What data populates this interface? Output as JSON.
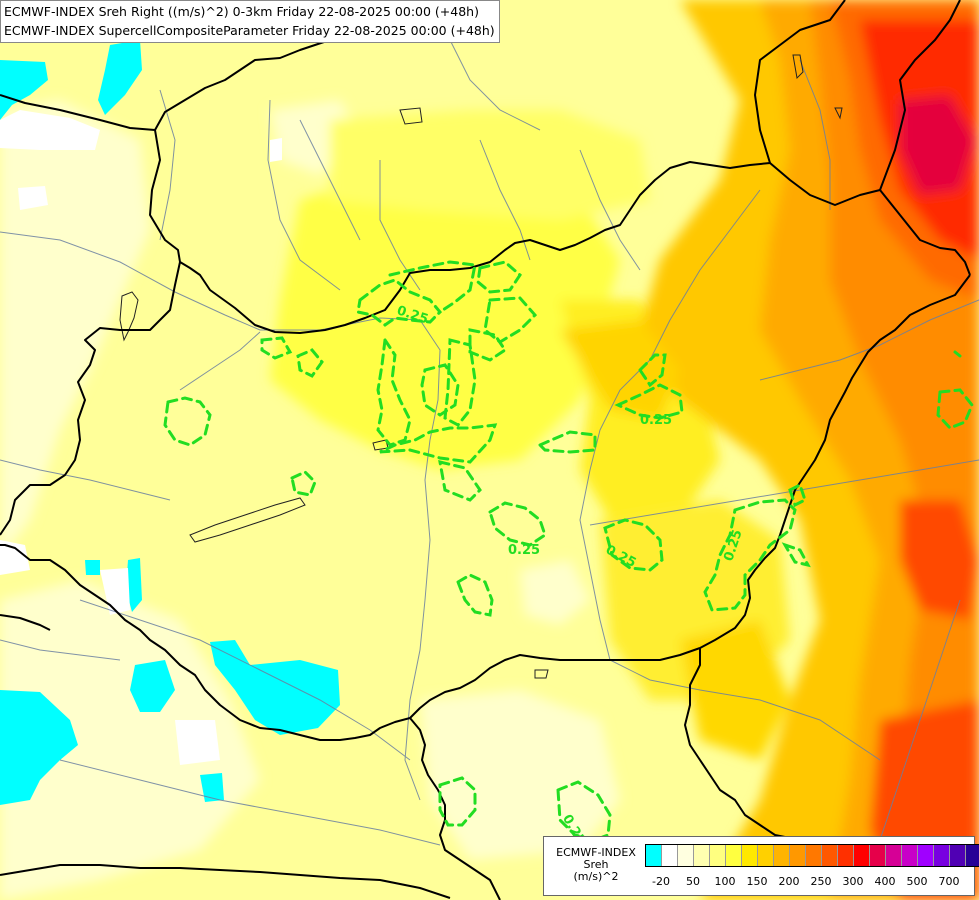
{
  "titles": {
    "line1": "ECMWF-INDEX Sreh Right ((m/s)^2) 0-3km Friday 22-08-2025 00:00 (+48h)",
    "line2": "ECMWF-INDEX SupercellCompositeParameter Friday 22-08-2025 00:00 (+48h)"
  },
  "legend": {
    "name_line1": "ECMWF-INDEX",
    "name_line2": "Sreh",
    "name_line3": "(m/s)^2",
    "colors": [
      "#00ffff",
      "#ffffff",
      "#ffffe0",
      "#ffffb0",
      "#ffff80",
      "#ffff40",
      "#ffe800",
      "#ffd000",
      "#ffb400",
      "#ff9800",
      "#ff7800",
      "#ff5800",
      "#ff3000",
      "#ff0000",
      "#e6004a",
      "#d60096",
      "#c800c8",
      "#a000ff",
      "#7800e0",
      "#5000b4",
      "#280096"
    ],
    "ticks": [
      "-20",
      "50",
      "100",
      "150",
      "200",
      "250",
      "300",
      "400",
      "500",
      "700"
    ]
  },
  "contour_labels": [
    {
      "text": "0.25"
    },
    {
      "text": "0.25"
    },
    {
      "text": "0.25"
    },
    {
      "text": "0.25"
    },
    {
      "text": "0.25"
    },
    {
      "text": "0.25"
    }
  ],
  "colors": {
    "contour": "#22dd22",
    "border": "#000000",
    "river": "#6a7fa0"
  }
}
